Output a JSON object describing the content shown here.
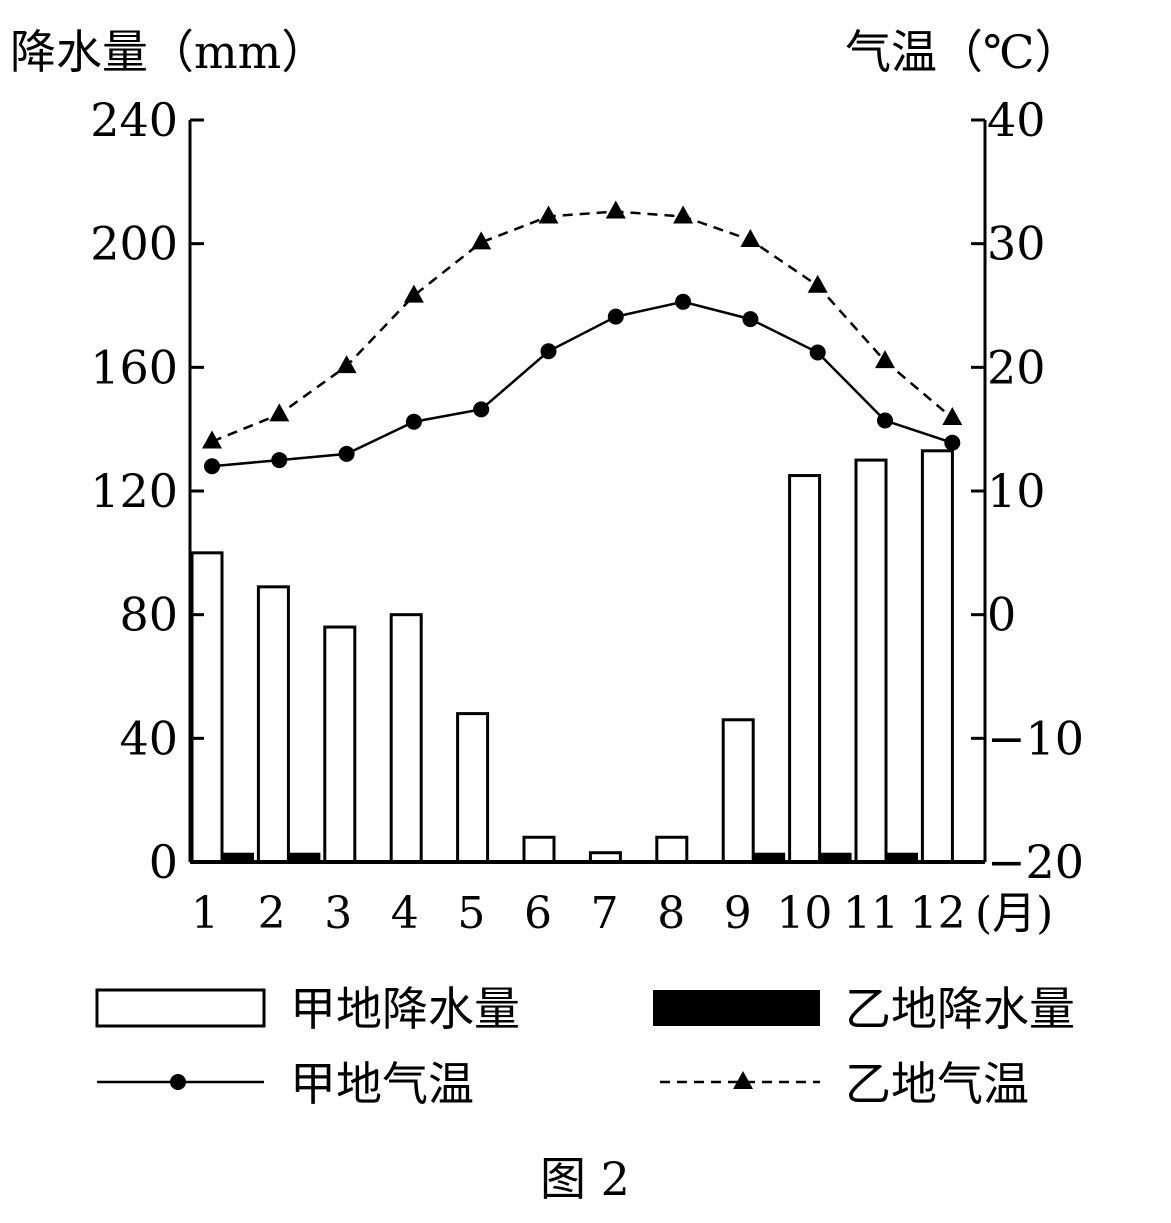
{
  "chart_data": {
    "type": "bar+line",
    "caption": "图 2",
    "ylabel_left": "降水量（mm）",
    "ylabel_right": "气温（℃）",
    "x_unit": "(月)",
    "ylim_left": [
      0,
      240
    ],
    "ylim_right": [
      -20,
      40
    ],
    "yticks_left": [
      "0",
      "40",
      "80",
      "120",
      "160",
      "200",
      "240"
    ],
    "yticks_right": [
      "−20",
      "−10",
      "0",
      "10",
      "20",
      "30",
      "40"
    ],
    "categories": [
      "1",
      "2",
      "3",
      "4",
      "5",
      "6",
      "7",
      "8",
      "9",
      "10",
      "11",
      "12"
    ],
    "series": [
      {
        "name": "甲地降水量",
        "type": "bar",
        "axis": "left",
        "values": [
          100,
          89,
          76,
          80,
          48,
          8,
          3,
          8,
          46,
          125,
          130,
          133
        ]
      },
      {
        "name": "乙地降水量",
        "type": "bar",
        "axis": "left",
        "values": [
          3,
          3,
          0,
          0,
          0,
          0,
          0,
          0,
          3,
          3,
          3,
          0
        ]
      },
      {
        "name": "甲地气温",
        "type": "line",
        "axis": "right",
        "marker": "circle",
        "values": [
          12,
          12.5,
          13,
          15.6,
          16.6,
          21.3,
          24.1,
          25.3,
          23.9,
          21.2,
          15.7,
          13.9
        ]
      },
      {
        "name": "乙地气温",
        "type": "line",
        "axis": "right",
        "marker": "triangle",
        "dashed": true,
        "values": [
          14,
          16.2,
          20.1,
          25.8,
          30.1,
          32.2,
          32.6,
          32.2,
          30.3,
          26.6,
          20.5,
          15.9
        ]
      }
    ]
  }
}
